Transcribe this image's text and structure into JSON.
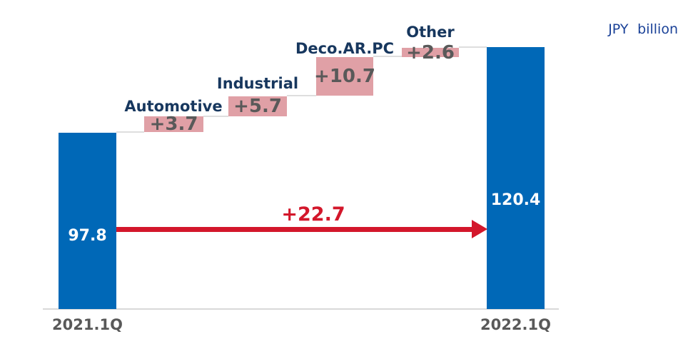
{
  "chart_data": {
    "type": "waterfall",
    "unit_label": "JPY billion",
    "start": {
      "category": "2021.1Q",
      "value": 97.8,
      "display": "97.8"
    },
    "increments": [
      {
        "label": "Automotive",
        "value": 3.7,
        "display": "+3.7"
      },
      {
        "label": "Industrial",
        "value": 5.7,
        "display": "+5.7"
      },
      {
        "label": "Deco.AR.PC",
        "value": 10.7,
        "display": "+10.7"
      },
      {
        "label": "Other",
        "value": 2.6,
        "display": "+2.6"
      }
    ],
    "end": {
      "category": "2022.1Q",
      "value": 120.4,
      "display": "120.4"
    },
    "total_change": {
      "value": 22.7,
      "display": "+22.7"
    },
    "layout_hints": {
      "baseline_visible": true,
      "value_axis_visible": false,
      "arrow_from_start_to_end": true
    },
    "colors": {
      "bar": "#0068B7",
      "increment_fill": "#E0A0A6",
      "increment_text": "#595959",
      "category_label": "#17375E",
      "bar_value_text": "#FFFFFF",
      "axis_category_text": "#595959",
      "arrow": "#D3172B",
      "unit_label_text": "#1B4298",
      "connector_line": "#DEDEDE"
    }
  }
}
